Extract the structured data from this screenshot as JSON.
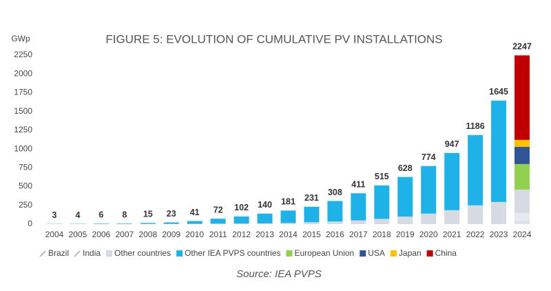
{
  "chart_data": {
    "type": "stacked_bar",
    "title": "FIGURE 5: EVOLUTION OF CUMULATIVE PV INSTALLATIONS",
    "y_label": "GWp",
    "source": "Source: IEA PVPS",
    "categories": [
      "2004",
      "2005",
      "2006",
      "2007",
      "2008",
      "2009",
      "2010",
      "2011",
      "2012",
      "2013",
      "2014",
      "2015",
      "2016",
      "2017",
      "2018",
      "2019",
      "2020",
      "2021",
      "2022",
      "2023",
      "2024"
    ],
    "series": [
      {
        "name": "Brazil",
        "color": "#dde1e8",
        "values": [
          0,
          0,
          0,
          0,
          0,
          0,
          0,
          0,
          0,
          0,
          0,
          0,
          0,
          0,
          0,
          0,
          0,
          0,
          0,
          0,
          50
        ]
      },
      {
        "name": "India",
        "color": "#e6e9ef",
        "values": [
          0,
          0,
          0,
          0,
          0,
          0,
          0,
          0,
          0,
          0,
          0,
          0,
          0,
          0,
          0,
          0,
          0,
          0,
          0,
          0,
          100
        ]
      },
      {
        "name": "Other countries",
        "color": "#d6dae3",
        "values": [
          0,
          0,
          0,
          1,
          2,
          3,
          4,
          6,
          8,
          10,
          15,
          25,
          35,
          50,
          70,
          100,
          140,
          185,
          250,
          295,
          310
        ]
      },
      {
        "name": "Other IEA PVPS countries",
        "color": "#1fb2e8",
        "values": [
          3,
          4,
          6,
          7,
          13,
          20,
          37,
          66,
          94,
          130,
          166,
          206,
          273,
          361,
          445,
          528,
          634,
          762,
          936,
          1350,
          0
        ]
      },
      {
        "name": "European Union",
        "color": "#92d050",
        "values": [
          0,
          0,
          0,
          0,
          0,
          0,
          0,
          0,
          0,
          0,
          0,
          0,
          0,
          0,
          0,
          0,
          0,
          0,
          0,
          0,
          340
        ]
      },
      {
        "name": "USA",
        "color": "#2f5597",
        "values": [
          0,
          0,
          0,
          0,
          0,
          0,
          0,
          0,
          0,
          0,
          0,
          0,
          0,
          0,
          0,
          0,
          0,
          0,
          0,
          0,
          230
        ]
      },
      {
        "name": "Japan",
        "color": "#ffc000",
        "values": [
          0,
          0,
          0,
          0,
          0,
          0,
          0,
          0,
          0,
          0,
          0,
          0,
          0,
          0,
          0,
          0,
          0,
          0,
          0,
          0,
          92
        ]
      },
      {
        "name": "China",
        "color": "#c00000",
        "values": [
          0,
          0,
          0,
          0,
          0,
          0,
          0,
          0,
          0,
          0,
          0,
          0,
          0,
          0,
          0,
          0,
          0,
          0,
          0,
          0,
          1125
        ]
      }
    ],
    "totals": [
      3,
      4,
      6,
      8,
      15,
      23,
      41,
      72,
      102,
      140,
      181,
      231,
      308,
      411,
      515,
      628,
      774,
      947,
      1186,
      1645,
      2247
    ],
    "ylim": [
      0,
      2250
    ],
    "yticks": [
      0,
      250,
      500,
      750,
      1000,
      1250,
      1500,
      1750,
      2000,
      2250
    ],
    "grid": false
  }
}
